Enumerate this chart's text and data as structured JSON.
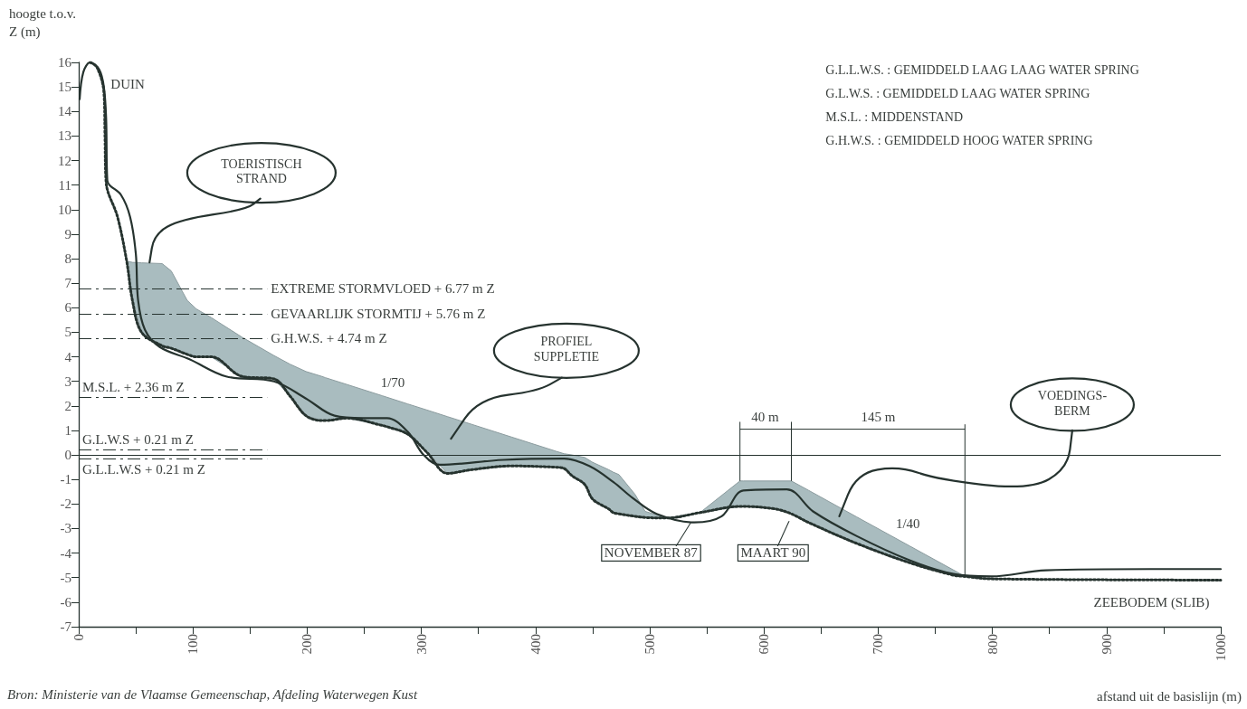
{
  "chart_data": {
    "type": "line",
    "xlabel": "afstand uit de basislijn (m)",
    "ylabel": "hoogte t.o.v. Z (m)",
    "xlim": [
      0,
      1000
    ],
    "xticks": [
      0,
      {
        "value": 50,
        "label": null
      },
      100,
      {
        "value": 150,
        "label": null
      },
      200,
      {
        "value": 250,
        "label": null
      },
      300,
      {
        "value": 350,
        "label": null
      },
      400,
      {
        "value": 450,
        "label": null
      },
      500,
      {
        "value": 550,
        "label": null
      },
      600,
      {
        "value": 650,
        "label": null
      },
      700,
      {
        "value": 750,
        "label": null
      },
      800,
      {
        "value": 850,
        "label": null
      },
      900,
      {
        "value": 950,
        "label": null
      },
      1000
    ],
    "ylim": [
      -7,
      16
    ],
    "yticks": [
      -7,
      -6,
      -5,
      -4,
      -3,
      -2,
      -1,
      0,
      1,
      2,
      3,
      4,
      5,
      6,
      7,
      8,
      9,
      10,
      11,
      12,
      13,
      14,
      15,
      16
    ],
    "marker": "none",
    "legend": "bottom",
    "series": [
      {
        "name": "NOVEMBER 87",
        "color": "#26332f",
        "line_style": "solid",
        "x": [
          0.8,
          4,
          10,
          18,
          22,
          24,
          25,
          27,
          37,
          45,
          50,
          52,
          58,
          71,
          97,
          129,
          171,
          199,
          224,
          249,
          270,
          288,
          302,
          316,
          372,
          425,
          447,
          468,
          485,
          506,
          539,
          563,
          582,
          620,
          643,
          681,
          728,
          766,
          799,
          847,
          941,
          1000
        ],
        "values": [
          14.5,
          15.6,
          16.0,
          15.7,
          15.0,
          13.7,
          11.2,
          11.0,
          10.6,
          9.7,
          8.2,
          6.3,
          5.1,
          4.4,
          3.9,
          3.2,
          3.0,
          2.3,
          1.6,
          1.5,
          1.5,
          0.95,
          0,
          -0.4,
          -0.2,
          -0.15,
          -0.45,
          -1.1,
          -1.75,
          -2.4,
          -2.75,
          -2.5,
          -1.45,
          -1.4,
          -2.3,
          -3.3,
          -4.3,
          -4.85,
          -4.95,
          -4.7,
          -4.65,
          -4.65
        ]
      },
      {
        "name": "MAART 90",
        "color": "#26332f",
        "line_style": "dotted",
        "x": [
          10,
          16,
          22,
          23,
          24,
          34,
          42,
          47,
          55,
          73,
          81,
          95,
          103,
          116,
          143,
          171,
          185,
          199,
          213,
          216,
          235,
          266,
          270,
          288,
          305,
          323,
          344,
          379,
          418,
          425,
          432,
          443,
          450,
          464,
          468,
          473,
          487,
          496,
          515,
          544,
          579,
          582,
          610,
          624,
          639,
          681,
          728,
          766,
          776,
          799,
          1000
        ],
        "values": [
          16.0,
          15.8,
          14.8,
          13.0,
          11.1,
          9.7,
          7.9,
          6.3,
          5.0,
          4.45,
          4.35,
          4.1,
          4.0,
          4.0,
          3.2,
          3.1,
          2.4,
          1.6,
          1.4,
          1.4,
          1.5,
          1.2,
          1.15,
          0.85,
          0.1,
          -0.75,
          -0.6,
          -0.45,
          -0.5,
          -0.55,
          -0.85,
          -1.2,
          -1.8,
          -2.2,
          -2.35,
          -2.4,
          -2.5,
          -2.55,
          -2.57,
          -2.35,
          -2.1,
          -2.1,
          -2.2,
          -2.4,
          -2.75,
          -3.6,
          -4.4,
          -4.9,
          -4.95,
          -5.05,
          -5.1
        ],
        "lower": [
          null,
          null,
          null,
          null,
          null,
          null,
          7.9,
          6.3,
          5.0,
          4.45,
          4.35,
          4.1,
          4.0,
          4.0,
          3.2,
          3.1,
          2.4,
          1.6,
          1.4,
          1.4,
          1.5,
          1.2,
          1.15,
          0.85,
          0.1,
          -0.75,
          -0.6,
          -0.45,
          -0.5,
          -0.55,
          -0.85,
          -1.2,
          -1.8,
          -2.2,
          -2.35,
          -2.4,
          -2.5,
          -2.55,
          -2.57,
          -2.35,
          -2.1,
          -2.1,
          -2.2,
          -2.4,
          -2.75,
          -3.6,
          -4.4,
          -4.9,
          -4.95,
          null,
          null
        ],
        "upper": [
          null,
          null,
          null,
          null,
          null,
          null,
          7.9,
          7.85,
          7.83,
          7.8,
          7.5,
          6.3,
          5.95,
          5.6,
          4.8,
          4.05,
          3.7,
          3.4,
          3.2,
          3.15,
          2.87,
          2.41,
          2.35,
          2.08,
          1.83,
          1.56,
          1.25,
          0.73,
          0.15,
          0.05,
          0.0,
          -0.1,
          -0.3,
          -0.6,
          -0.7,
          -0.8,
          -1.6,
          -2.3,
          -2.57,
          -2.35,
          -1.06,
          -1.06,
          -1.06,
          -1.06,
          -1.44,
          -2.52,
          -3.72,
          -4.69,
          -4.95,
          null,
          null
        ]
      }
    ],
    "ref_lines": [
      {
        "axis": "y",
        "value": 0,
        "label": null,
        "color": "#26332f",
        "line_style": "solid"
      },
      {
        "axis": "y",
        "value": 6.77,
        "label": "EXTREME STORMVLOED + 6.77 m Z",
        "color": "#26332f",
        "line_style": "dashed"
      },
      {
        "axis": "y",
        "value": 5.76,
        "label": "GEVAARLIJK STORMTIJ + 5.76 m Z",
        "color": "#26332f",
        "line_style": "dashed"
      },
      {
        "axis": "y",
        "value": 4.74,
        "label": "G.H.W.S. + 4.74 m Z",
        "color": "#26332f",
        "line_style": "dashed"
      },
      {
        "axis": "y",
        "value": 2.36,
        "label": "M.S.L. + 2.36 m Z",
        "color": "#26332f",
        "line_style": "dashed"
      },
      {
        "axis": "y",
        "value": 0.21,
        "label": "G.L.W.S + 0.21 m Z",
        "color": "#26332f",
        "line_style": "dashed"
      },
      {
        "axis": "y",
        "value": -0.15,
        "label": "G.L.L.W.S + 0.21 m Z",
        "color": "#26332f",
        "line_style": "dashed"
      }
    ],
    "annotations": [
      "DUIN",
      {
        "text": "TOERISTISCH STRAND",
        "x": 62,
        "y": 7.85
      },
      "PROFIEL SUPPLETIE",
      "VOEDINGS-BERM",
      "1/70",
      "1/40",
      {
        "text": "40 m",
        "x": 579,
        "y": -1.06
      },
      "145 m",
      "ZEEBODEM (SLIB)",
      "G.L.L.W.S. : GEMIDDELD LAAG LAAG WATER SPRING",
      "G.L.W.S. : GEMIDDELD LAAG WATER SPRING",
      "M.S.L. : MIDDENSTAND",
      "G.H.W.S. : GEMIDDELD HOOG WATER SPRING",
      "Bron: Ministerie van de Vlaamse Gemeenschap, Afdeling Waterwegen Kust"
    ]
  }
}
